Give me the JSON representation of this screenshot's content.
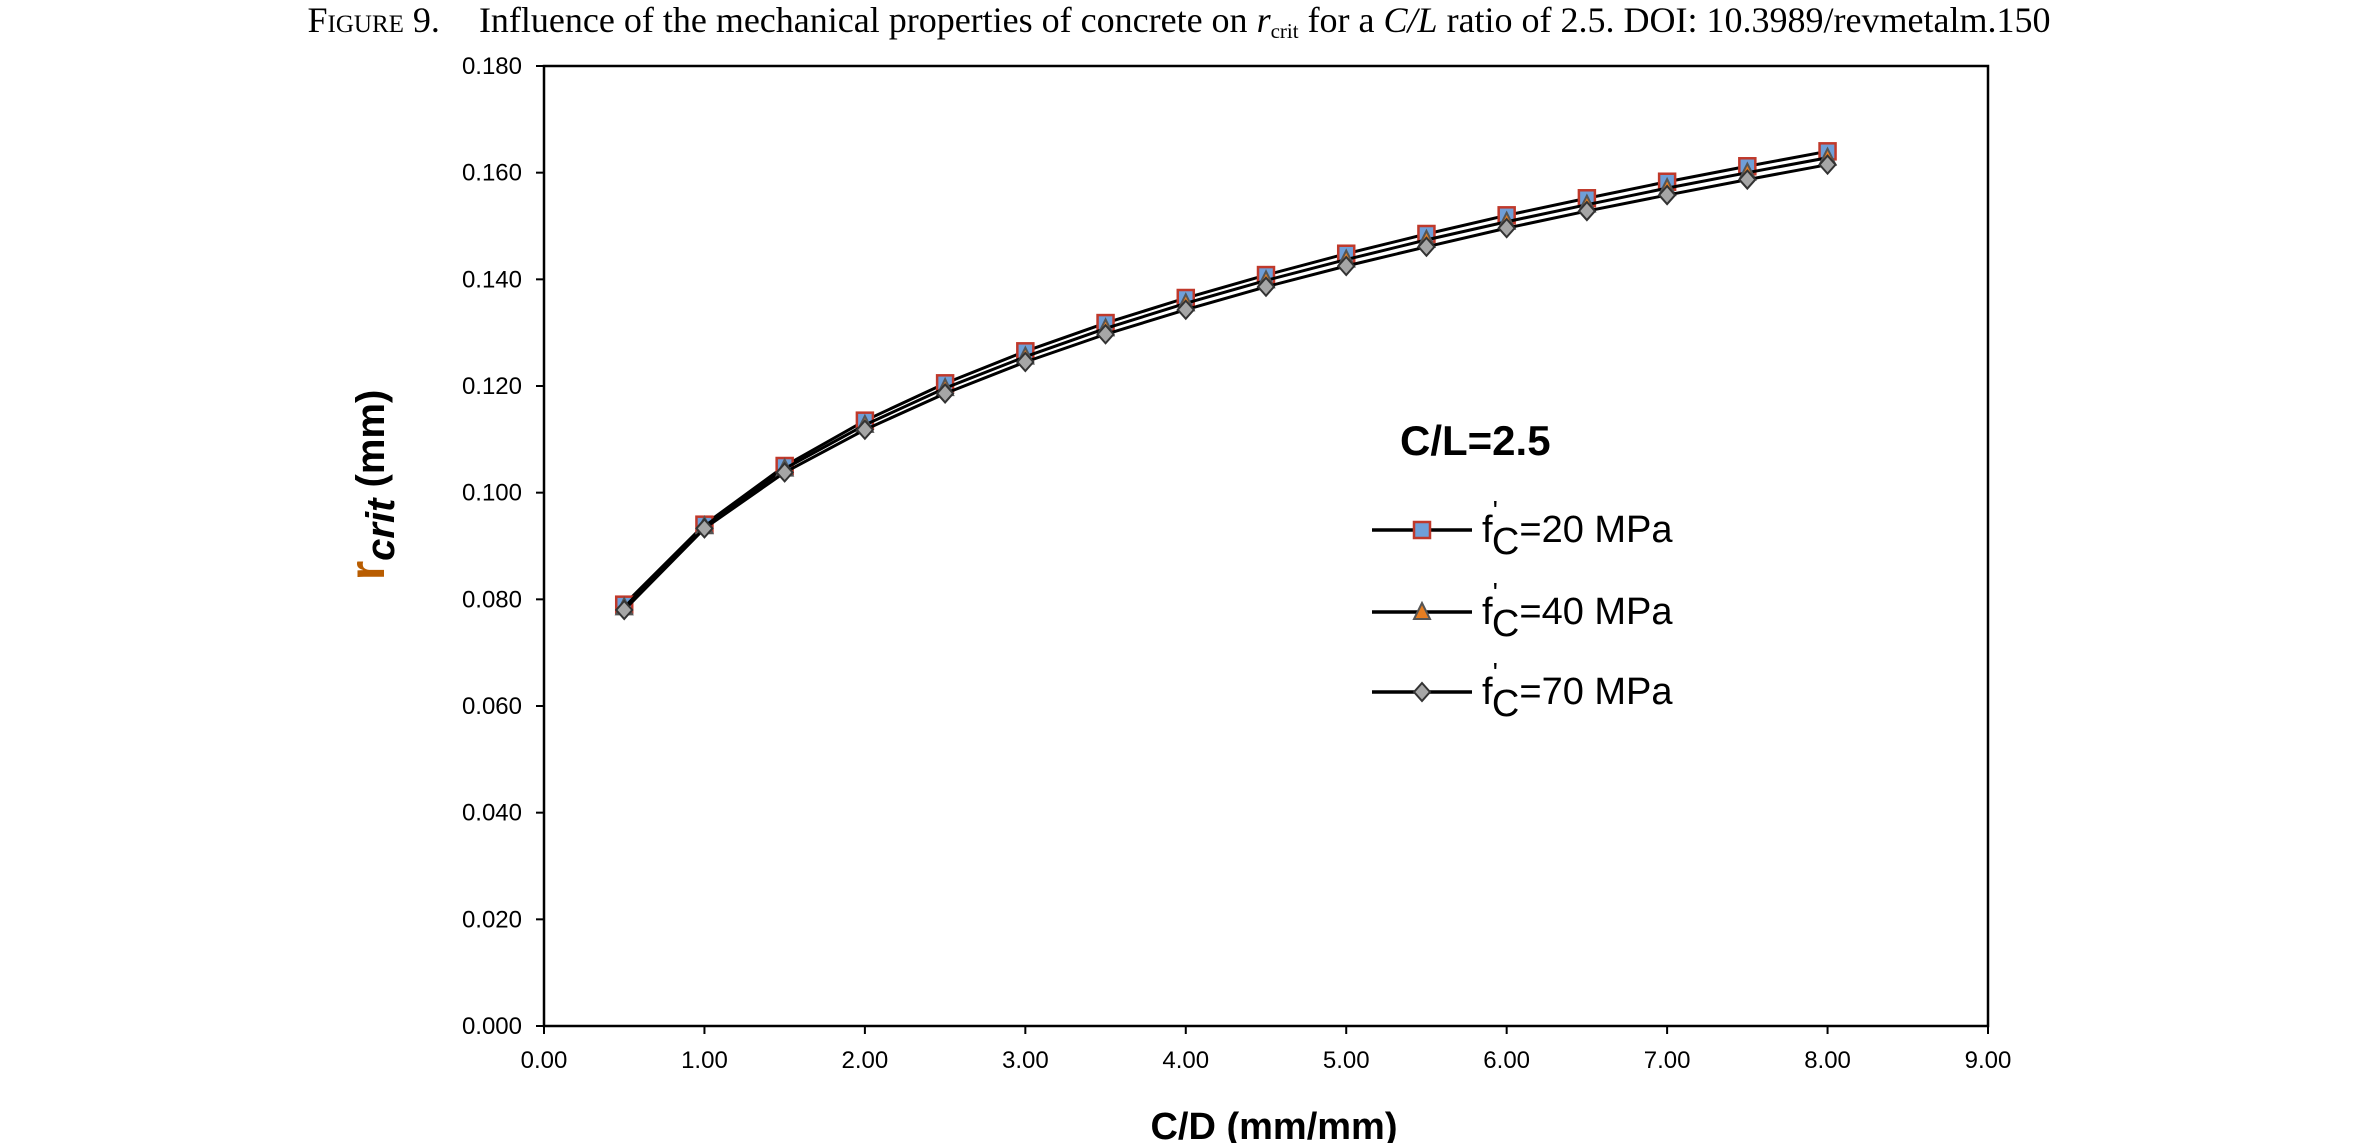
{
  "caption": {
    "label": "Figure 9.",
    "text_before_r": "Influence of the mechanical properties of concrete on",
    "r_symbol": "r",
    "r_subscript": "crit",
    "text_for_a": "for a",
    "ratio_symbol": "C/L",
    "text_after": "ratio of 2.5. DOI: 10.3989/revmetalm.150"
  },
  "chart_data": {
    "type": "line",
    "title": "",
    "xlabel": "C/D (mm/mm)",
    "ylabel_main": "r",
    "ylabel_sub": "crit",
    "ylabel_unit": "(mm)",
    "xlim": [
      0,
      9
    ],
    "ylim": [
      0,
      0.18
    ],
    "xticks": [
      0,
      1,
      2,
      3,
      4,
      5,
      6,
      7,
      8,
      9
    ],
    "xtick_labels": [
      "0.00",
      "1.00",
      "2.00",
      "3.00",
      "4.00",
      "5.00",
      "6.00",
      "7.00",
      "8.00",
      "9.00"
    ],
    "yticks": [
      0,
      0.02,
      0.04,
      0.06,
      0.08,
      0.1,
      0.12,
      0.14,
      0.16,
      0.18
    ],
    "ytick_labels": [
      "0.000",
      "0.020",
      "0.040",
      "0.060",
      "0.080",
      "0.100",
      "0.120",
      "0.140",
      "0.160",
      "0.180"
    ],
    "grid": false,
    "legend_position": "right",
    "legend_title": "C/L=2.5",
    "x": [
      0.5,
      1.0,
      1.5,
      2.0,
      2.5,
      3.0,
      3.5,
      4.0,
      4.5,
      5.0,
      5.5,
      6.0,
      6.5,
      7.0,
      7.5,
      8.0
    ],
    "series": [
      {
        "name_prefix": "f",
        "name_prime": "'",
        "name_sub": "C",
        "name_suffix": "=20 MPa",
        "marker": "square",
        "marker_fill": "#6f9fd8",
        "marker_stroke": "#c0392b",
        "values": [
          0.079,
          0.094,
          0.105,
          0.1135,
          0.1205,
          0.1265,
          0.1318,
          0.1365,
          0.1408,
          0.1448,
          0.1485,
          0.152,
          0.1552,
          0.1583,
          0.1612,
          0.164
        ]
      },
      {
        "name_prefix": "f",
        "name_prime": "'",
        "name_sub": "C",
        "name_suffix": "=40 MPa",
        "marker": "triangle",
        "marker_fill": "#e67e22",
        "marker_stroke": "#555555",
        "values": [
          0.0785,
          0.0937,
          0.1045,
          0.1127,
          0.1196,
          0.1255,
          0.1308,
          0.1355,
          0.1398,
          0.1437,
          0.1474,
          0.1508,
          0.154,
          0.1571,
          0.16,
          0.1628
        ]
      },
      {
        "name_prefix": "f",
        "name_prime": "'",
        "name_sub": "C",
        "name_suffix": "=70 MPa",
        "marker": "diamond",
        "marker_fill": "#a6a6a6",
        "marker_stroke": "#333333",
        "values": [
          0.078,
          0.0933,
          0.1038,
          0.1118,
          0.1186,
          0.1245,
          0.1297,
          0.1343,
          0.1386,
          0.1425,
          0.1461,
          0.1496,
          0.1528,
          0.1558,
          0.1587,
          0.1615
        ]
      }
    ]
  }
}
